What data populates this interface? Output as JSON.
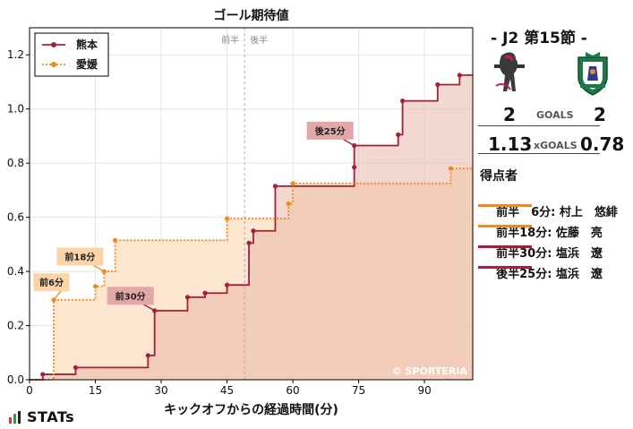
{
  "chart_data": {
    "type": "line",
    "title": "ゴール期待値",
    "xlabel": "キックオフからの経過時間(分)",
    "ylabel": "",
    "xlim": [
      0,
      101
    ],
    "ylim": [
      0,
      1.3
    ],
    "x_ticks": [
      0,
      15,
      30,
      45,
      60,
      75,
      90
    ],
    "y_ticks": [
      0.0,
      0.2,
      0.4,
      0.6,
      0.8,
      1.0,
      1.2
    ],
    "half_time_x": 49,
    "half_labels": [
      "前半",
      "後半"
    ],
    "grid": true,
    "legend": "top-left",
    "watermark": "© SPORTERIA",
    "series": [
      {
        "name": "熊本",
        "color": "#a3203b",
        "fill": "#e8b8a8",
        "style": "solid",
        "points": [
          [
            0,
            0
          ],
          [
            3,
            0.02
          ],
          [
            10.5,
            0.045
          ],
          [
            27,
            0.09
          ],
          [
            28.5,
            0.255
          ],
          [
            36,
            0.305
          ],
          [
            40,
            0.32
          ],
          [
            45,
            0.35
          ],
          [
            50,
            0.505
          ],
          [
            51,
            0.55
          ],
          [
            56,
            0.715
          ],
          [
            74,
            0.785
          ],
          [
            74,
            0.865
          ],
          [
            84,
            0.905
          ],
          [
            85,
            1.03
          ],
          [
            93,
            1.09
          ],
          [
            98,
            1.125
          ],
          [
            101,
            1.125
          ]
        ]
      },
      {
        "name": "愛媛",
        "color": "#f08a1d",
        "fill": "#fde3c8",
        "style": "dotted",
        "points": [
          [
            0,
            0
          ],
          [
            5.5,
            0.295
          ],
          [
            15,
            0.345
          ],
          [
            17,
            0.4
          ],
          [
            19.5,
            0.515
          ],
          [
            45,
            0.595
          ],
          [
            59,
            0.65
          ],
          [
            60,
            0.725
          ],
          [
            96,
            0.78
          ],
          [
            101,
            0.78
          ]
        ]
      }
    ],
    "goal_annotations": [
      {
        "label": "前6分",
        "team": "愛媛",
        "x": 5.5,
        "y": 0.295,
        "lx": 5,
        "ly": 0.36
      },
      {
        "label": "前18分",
        "team": "愛媛",
        "x": 17,
        "y": 0.4,
        "lx": 11.5,
        "ly": 0.455
      },
      {
        "label": "前30分",
        "team": "熊本",
        "x": 28.5,
        "y": 0.255,
        "lx": 23,
        "ly": 0.31
      },
      {
        "label": "後25分",
        "team": "熊本",
        "x": 74,
        "y": 0.865,
        "lx": 68.5,
        "ly": 0.92
      }
    ]
  },
  "side": {
    "round": "- J2 第15節 -",
    "home_score": "2",
    "away_score": "2",
    "goals_label": "GOALS",
    "home_xg": "1.13",
    "away_xg": "0.78",
    "xg_label": "xGOALS",
    "scorers_title": "得点者",
    "scorers": [
      {
        "text": "前半　6分: 村上　悠緋",
        "color": "#f08a1d"
      },
      {
        "text": "前半18分: 佐藤　亮",
        "color": "#f08a1d"
      },
      {
        "text": "前半30分: 塩浜　遼",
        "color": "#a3203b"
      },
      {
        "text": "後半25分: 塩浜　遼",
        "color": "#a3203b"
      }
    ]
  },
  "brand": "STATs"
}
